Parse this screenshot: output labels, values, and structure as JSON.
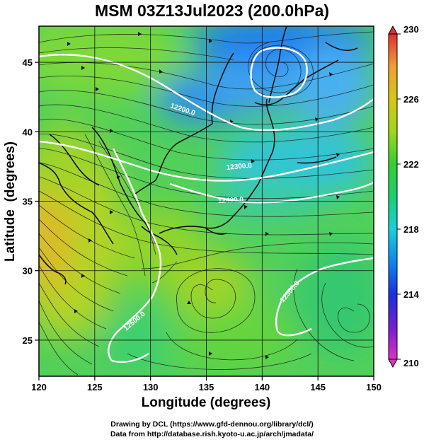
{
  "title": "MSM 03Z13Jul2023 (200.0hPa)",
  "xaxis": {
    "label": "Longitude (degrees)",
    "ticks": [
      120,
      125,
      130,
      135,
      140,
      145,
      150
    ],
    "range": [
      120,
      150
    ]
  },
  "yaxis": {
    "label": "Latitude  (degrees)",
    "ticks": [
      25,
      30,
      35,
      40,
      45
    ],
    "range": [
      22.4,
      47.6
    ]
  },
  "colorbar": {
    "ticks": [
      210,
      214,
      218,
      222,
      226,
      230
    ],
    "range": [
      210,
      230
    ],
    "colors": [
      "#e030c8",
      "#7a1fd0",
      "#1a30e0",
      "#0f86f0",
      "#18d0d8",
      "#18d070",
      "#30d030",
      "#9cd818",
      "#d4c818",
      "#f0a030",
      "#f06030",
      "#e03030"
    ]
  },
  "contour_labels": [
    "12200.0",
    "12300.0",
    "12400.0",
    "12500.0",
    "12500.0"
  ],
  "credits": {
    "line1": "Drawing by DCL (https://www.gfd-dennou.org/library/dcl/)",
    "line2": "Data from http://database.rish.kyoto-u.ac.jp/arch/jmadata/"
  }
}
